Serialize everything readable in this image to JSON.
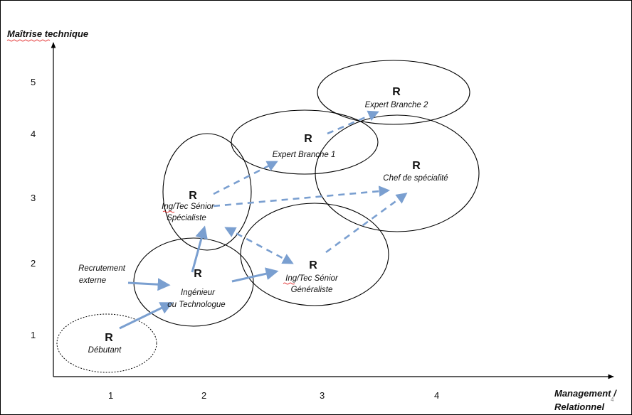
{
  "colors": {
    "arrow": "#7a9fd0",
    "line": "#000000"
  },
  "axes": {
    "y_title": "Maîtrise technique",
    "x_title_line1": "Management /",
    "x_title_line2": "Relationnel",
    "y_ticks": [
      "1",
      "2",
      "3",
      "4",
      "5"
    ],
    "x_ticks": [
      "1",
      "2",
      "3",
      "4"
    ]
  },
  "nodes": [
    {
      "id": "debutant",
      "mark": "R",
      "lines": [
        "Débutant"
      ]
    },
    {
      "id": "ingenieur",
      "mark": "R",
      "lines": [
        "Ingénieur",
        "ou Technologue"
      ]
    },
    {
      "id": "specialiste",
      "mark": "R",
      "lines": [
        "Ing/Tec Sénior",
        "Spécialiste"
      ]
    },
    {
      "id": "generaliste",
      "mark": "R",
      "lines": [
        "Ing/Tec Sénior",
        "Généraliste"
      ]
    },
    {
      "id": "expert1",
      "mark": "R",
      "lines": [
        "Expert Branche 1"
      ]
    },
    {
      "id": "expert2",
      "mark": "R",
      "lines": [
        "Expert Branche 2"
      ]
    },
    {
      "id": "chef",
      "mark": "R",
      "lines": [
        "Chef de spécialité"
      ]
    }
  ],
  "external": {
    "lines": [
      "Recrutement",
      "externe"
    ]
  },
  "stray_mark": "4"
}
